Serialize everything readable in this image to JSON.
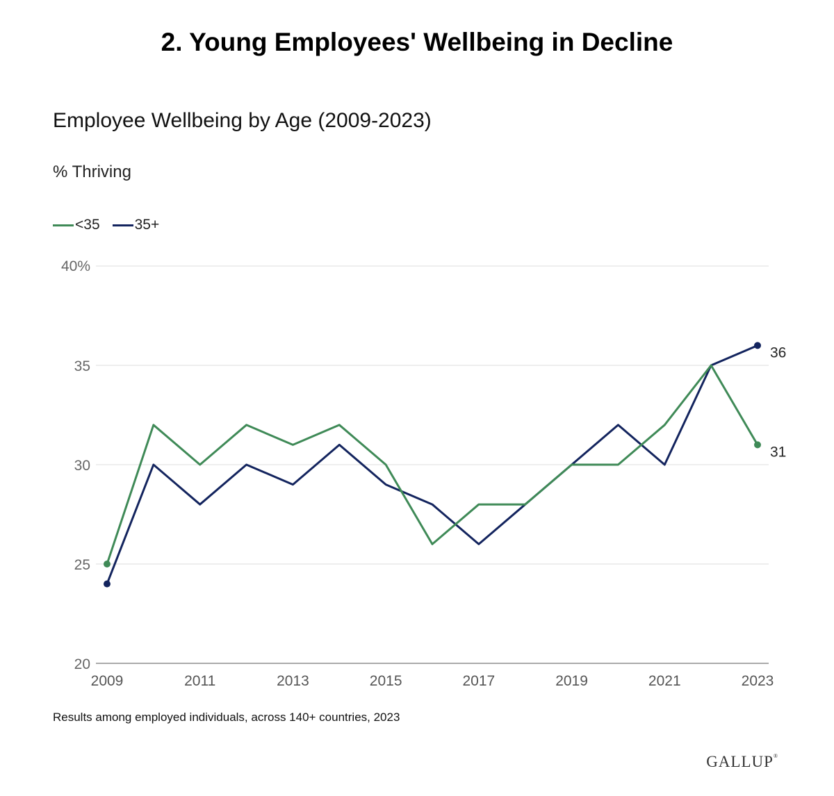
{
  "header": {
    "title": "2. Young Employees' Wellbeing in Decline"
  },
  "chart_data": {
    "type": "line",
    "title": "Employee Wellbeing by Age (2009-2023)",
    "ylabel": "% Thriving",
    "xlabel": "",
    "x": [
      2009,
      2010,
      2011,
      2012,
      2013,
      2014,
      2015,
      2016,
      2017,
      2018,
      2019,
      2020,
      2021,
      2022,
      2023
    ],
    "x_tick_labels": [
      "2009",
      "2011",
      "2013",
      "2015",
      "2017",
      "2019",
      "2021",
      "2023"
    ],
    "y_tick_labels": [
      "40%",
      "35",
      "30",
      "25",
      "20"
    ],
    "ylim": [
      20,
      40
    ],
    "xlim": [
      2009,
      2023
    ],
    "grid": true,
    "legend_position": "top-left",
    "series": [
      {
        "name": "<35",
        "color": "#3f8a57",
        "values": [
          25,
          32,
          30,
          32,
          31,
          32,
          30,
          26,
          28,
          28,
          30,
          30,
          32,
          35,
          31
        ],
        "end_label": "31"
      },
      {
        "name": "35+",
        "color": "#13245e",
        "values": [
          24,
          30,
          28,
          30,
          29,
          31,
          29,
          28,
          26,
          28,
          30,
          32,
          30,
          35,
          36
        ],
        "end_label": "36"
      }
    ]
  },
  "footer": {
    "note": "Results among employed individuals, across 140+ countries, 2023",
    "brand": "GALLUP",
    "brand_mark": "®"
  }
}
